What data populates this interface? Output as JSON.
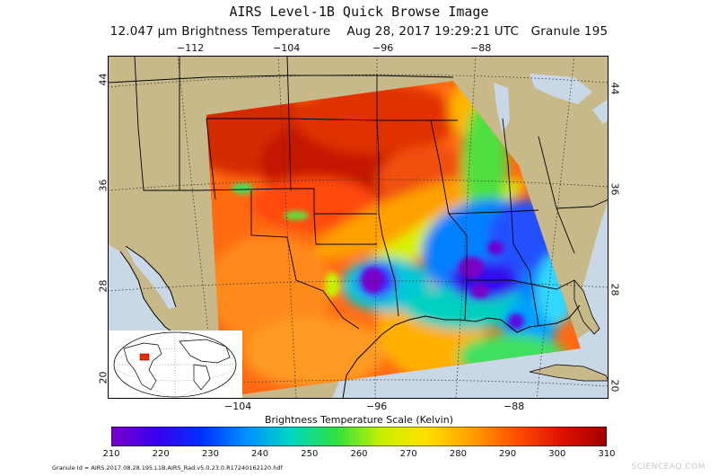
{
  "header": {
    "title": "AIRS Level-1B Quick Browse Image",
    "band": "12.047",
    "band_unit": "μm",
    "product": "Brightness Temperature",
    "date": "Aug 28, 2017",
    "time": "19:29:21 UTC",
    "granule": "Granule 195"
  },
  "axes": {
    "top_lon": [
      "−112",
      "−104",
      "−96",
      "−88"
    ],
    "bottom_lon": [
      "−104",
      "−96",
      "−88"
    ],
    "left_lat": [
      "44",
      "36",
      "28",
      "20"
    ],
    "right_lat": [
      "44",
      "36",
      "28",
      "20"
    ]
  },
  "colorbar": {
    "title": "Brightness Temperature Scale (Kelvin)",
    "ticks": [
      "210",
      "220",
      "230",
      "240",
      "250",
      "260",
      "270",
      "280",
      "290",
      "300",
      "310"
    ],
    "min": 210,
    "max": 310,
    "colors": [
      "#7a00c8",
      "#3a00f0",
      "#0030ff",
      "#0090ff",
      "#00d8c0",
      "#30e040",
      "#c8f000",
      "#ffe000",
      "#ffa000",
      "#ff5000",
      "#e01000",
      "#a00000"
    ]
  },
  "footer": {
    "granule_id": "Granule Id = AIRS.2017.08.28.195.L1B.AIRS_Rad.v5.0.23.0.R17240162120.hdf",
    "watermark": "SCIENCEAQ.COM"
  },
  "map": {
    "land_color": "#c8b98a",
    "ocean_color": "#c9d8e6"
  }
}
